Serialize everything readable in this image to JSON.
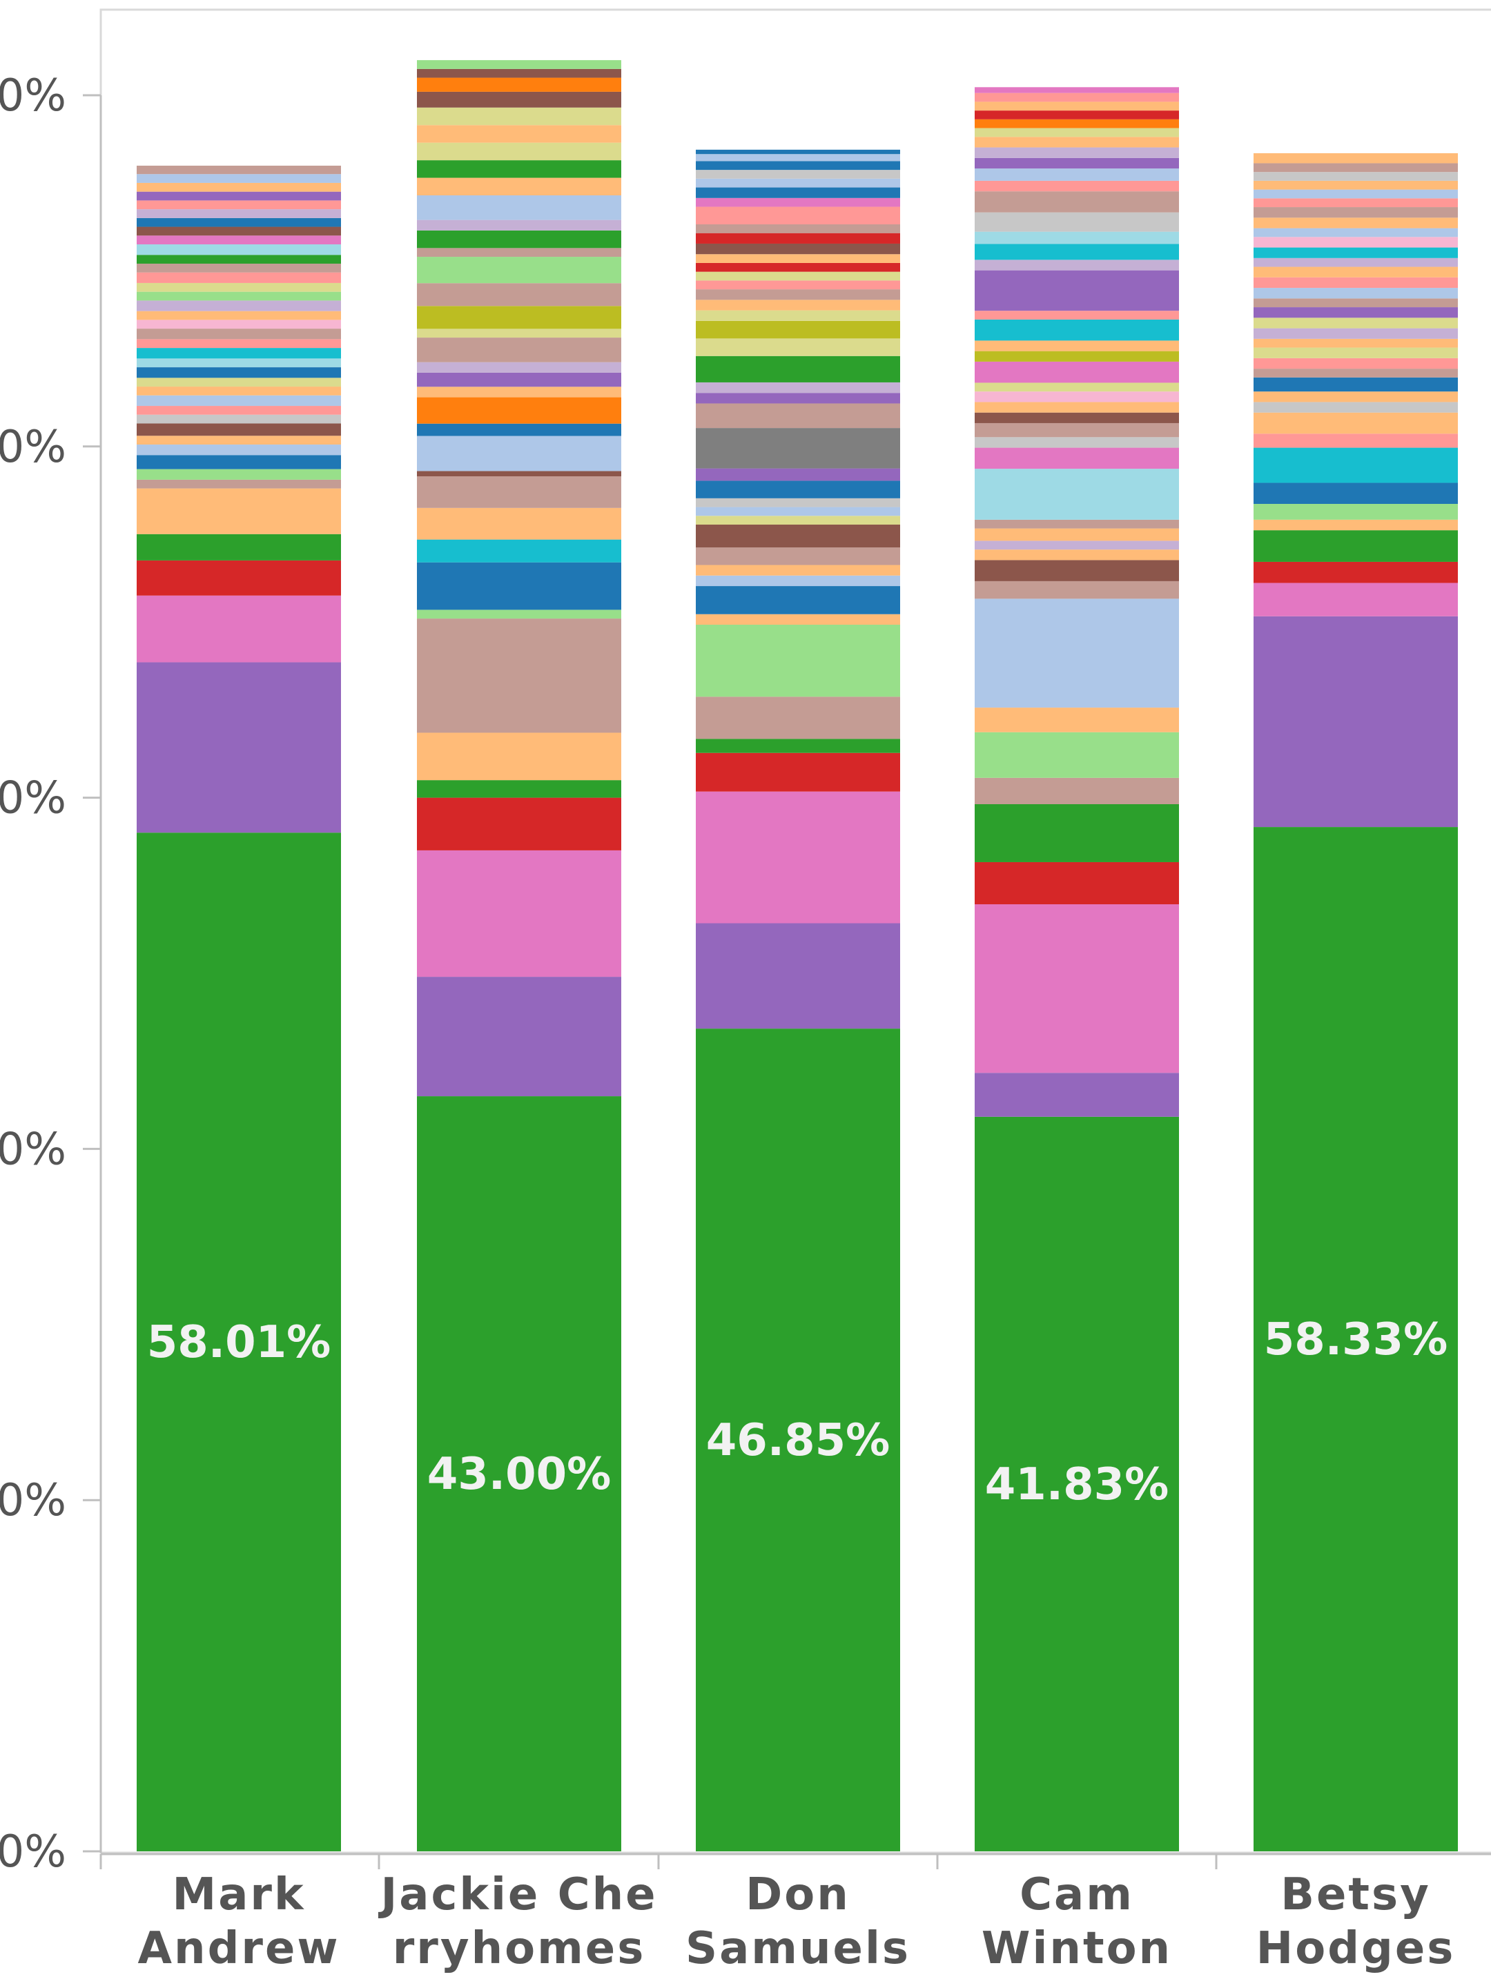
{
  "chart_data": {
    "type": "bar",
    "stacked": true,
    "title": "",
    "xlabel": "",
    "ylabel": "",
    "ylim": [
      0,
      100
    ],
    "y_tick_labels": [
      "0%",
      "0%",
      "0%",
      "0%",
      "0%",
      "0%"
    ],
    "grid": false,
    "categories": [
      "Mark\nAndrew",
      "Jackie Che\nrryhomes",
      "Don\nSamuels",
      "Cam\nWinton",
      "Betsy\nHodges"
    ],
    "data_labels": [
      "58.01%",
      "43.00%",
      "46.85%",
      "41.83%",
      "58.33%"
    ],
    "bars": [
      {
        "segments": [
          {
            "value": 58.01,
            "color": "#2ca02c"
          },
          {
            "value": 9.7,
            "color": "#9467bd"
          },
          {
            "value": 3.8,
            "color": "#e377c2"
          },
          {
            "value": 2.0,
            "color": "#d62728"
          },
          {
            "value": 1.5,
            "color": "#2ca02c"
          },
          {
            "value": 2.6,
            "color": "#ffbb78"
          },
          {
            "value": 0.5,
            "color": "#c49c94"
          },
          {
            "value": 0.6,
            "color": "#98df8a"
          },
          {
            "value": 0.8,
            "color": "#1f77b4"
          },
          {
            "value": 0.6,
            "color": "#aec7e8"
          },
          {
            "value": 0.5,
            "color": "#ffbb78"
          },
          {
            "value": 0.7,
            "color": "#8c564b"
          },
          {
            "value": 0.5,
            "color": "#c7c7c7"
          },
          {
            "value": 0.5,
            "color": "#ff9896"
          },
          {
            "value": 0.6,
            "color": "#aec7e8"
          },
          {
            "value": 0.5,
            "color": "#ffbb78"
          },
          {
            "value": 0.5,
            "color": "#dbdb8d"
          },
          {
            "value": 0.6,
            "color": "#1f77b4"
          },
          {
            "value": 0.5,
            "color": "#9edae5"
          },
          {
            "value": 0.6,
            "color": "#17becf"
          },
          {
            "value": 0.5,
            "color": "#ff9896"
          },
          {
            "value": 0.6,
            "color": "#c49c94"
          },
          {
            "value": 0.5,
            "color": "#f7b6d2"
          },
          {
            "value": 0.5,
            "color": "#ffbb78"
          },
          {
            "value": 0.6,
            "color": "#c5b0d5"
          },
          {
            "value": 0.5,
            "color": "#98df8a"
          },
          {
            "value": 0.5,
            "color": "#dbdb8d"
          },
          {
            "value": 0.6,
            "color": "#ff9896"
          },
          {
            "value": 0.5,
            "color": "#c49c94"
          },
          {
            "value": 0.5,
            "color": "#2ca02c"
          },
          {
            "value": 0.6,
            "color": "#9edae5"
          },
          {
            "value": 0.5,
            "color": "#e377c2"
          },
          {
            "value": 0.5,
            "color": "#8c564b"
          },
          {
            "value": 0.5,
            "color": "#1f77b4"
          },
          {
            "value": 0.5,
            "color": "#c5b0d5"
          },
          {
            "value": 0.5,
            "color": "#ff9896"
          },
          {
            "value": 0.5,
            "color": "#9467bd"
          },
          {
            "value": 0.5,
            "color": "#ffbb78"
          },
          {
            "value": 0.5,
            "color": "#aec7e8"
          },
          {
            "value": 0.48,
            "color": "#c49c94"
          }
        ]
      },
      {
        "segments": [
          {
            "value": 43.0,
            "color": "#2ca02c"
          },
          {
            "value": 6.8,
            "color": "#9467bd"
          },
          {
            "value": 7.2,
            "color": "#e377c2"
          },
          {
            "value": 3.0,
            "color": "#d62728"
          },
          {
            "value": 1.0,
            "color": "#2ca02c"
          },
          {
            "value": 2.7,
            "color": "#ffbb78"
          },
          {
            "value": 6.5,
            "color": "#c49c94"
          },
          {
            "value": 0.5,
            "color": "#98df8a"
          },
          {
            "value": 2.7,
            "color": "#1f77b4"
          },
          {
            "value": 1.3,
            "color": "#17becf"
          },
          {
            "value": 1.8,
            "color": "#ffbb78"
          },
          {
            "value": 1.8,
            "color": "#c49c94"
          },
          {
            "value": 0.3,
            "color": "#8c564b"
          },
          {
            "value": 2.0,
            "color": "#aec7e8"
          },
          {
            "value": 0.7,
            "color": "#1f77b4"
          },
          {
            "value": 1.5,
            "color": "#ff7f0e"
          },
          {
            "value": 0.6,
            "color": "#ffbb78"
          },
          {
            "value": 0.8,
            "color": "#9467bd"
          },
          {
            "value": 0.6,
            "color": "#c5b0d5"
          },
          {
            "value": 1.4,
            "color": "#c49c94"
          },
          {
            "value": 0.5,
            "color": "#dbdb8d"
          },
          {
            "value": 1.3,
            "color": "#bcbd22"
          },
          {
            "value": 1.3,
            "color": "#c49c94"
          },
          {
            "value": 1.5,
            "color": "#98df8a"
          },
          {
            "value": 0.5,
            "color": "#c49c94"
          },
          {
            "value": 1.0,
            "color": "#2ca02c"
          },
          {
            "value": 0.6,
            "color": "#c5b0d5"
          },
          {
            "value": 1.4,
            "color": "#aec7e8"
          },
          {
            "value": 1.0,
            "color": "#ffbb78"
          },
          {
            "value": 1.0,
            "color": "#2ca02c"
          },
          {
            "value": 1.0,
            "color": "#dbdb8d"
          },
          {
            "value": 1.0,
            "color": "#ffbb78"
          },
          {
            "value": 1.0,
            "color": "#dbdb8d"
          },
          {
            "value": 0.9,
            "color": "#8c564b"
          },
          {
            "value": 0.8,
            "color": "#ff7f0e"
          },
          {
            "value": 0.5,
            "color": "#8c564b"
          },
          {
            "value": 0.5,
            "color": "#98df8a"
          }
        ]
      },
      {
        "segments": [
          {
            "value": 46.85,
            "color": "#2ca02c"
          },
          {
            "value": 6.0,
            "color": "#9467bd"
          },
          {
            "value": 7.5,
            "color": "#e377c2"
          },
          {
            "value": 2.2,
            "color": "#d62728"
          },
          {
            "value": 0.8,
            "color": "#2ca02c"
          },
          {
            "value": 2.4,
            "color": "#c49c94"
          },
          {
            "value": 4.1,
            "color": "#98df8a"
          },
          {
            "value": 0.6,
            "color": "#ffbb78"
          },
          {
            "value": 1.6,
            "color": "#1f77b4"
          },
          {
            "value": 0.6,
            "color": "#aec7e8"
          },
          {
            "value": 0.6,
            "color": "#ffbb78"
          },
          {
            "value": 1.0,
            "color": "#c49c94"
          },
          {
            "value": 1.3,
            "color": "#8c564b"
          },
          {
            "value": 0.5,
            "color": "#dbdb8d"
          },
          {
            "value": 0.5,
            "color": "#aec7e8"
          },
          {
            "value": 0.5,
            "color": "#c7c7c7"
          },
          {
            "value": 1.0,
            "color": "#1f77b4"
          },
          {
            "value": 0.7,
            "color": "#9467bd"
          },
          {
            "value": 2.3,
            "color": "#7f7f7f"
          },
          {
            "value": 1.4,
            "color": "#c49c94"
          },
          {
            "value": 0.6,
            "color": "#9467bd"
          },
          {
            "value": 0.6,
            "color": "#c5b0d5"
          },
          {
            "value": 1.5,
            "color": "#2ca02c"
          },
          {
            "value": 1.0,
            "color": "#dbdb8d"
          },
          {
            "value": 1.0,
            "color": "#bcbd22"
          },
          {
            "value": 0.6,
            "color": "#dbdb8d"
          },
          {
            "value": 0.6,
            "color": "#ffbb78"
          },
          {
            "value": 0.6,
            "color": "#c49c94"
          },
          {
            "value": 0.5,
            "color": "#ff9896"
          },
          {
            "value": 0.5,
            "color": "#dbdb8d"
          },
          {
            "value": 0.5,
            "color": "#d62728"
          },
          {
            "value": 0.5,
            "color": "#ffbb78"
          },
          {
            "value": 0.6,
            "color": "#8c564b"
          },
          {
            "value": 0.6,
            "color": "#d62728"
          },
          {
            "value": 0.5,
            "color": "#c49c94"
          },
          {
            "value": 1.0,
            "color": "#ff9896"
          },
          {
            "value": 0.5,
            "color": "#e377c2"
          },
          {
            "value": 0.6,
            "color": "#1f77b4"
          },
          {
            "value": 0.5,
            "color": "#aec7e8"
          },
          {
            "value": 0.5,
            "color": "#c7c7c7"
          },
          {
            "value": 0.5,
            "color": "#1f77b4"
          },
          {
            "value": 0.4,
            "color": "#aec7e8"
          },
          {
            "value": 0.25,
            "color": "#1f77b4"
          }
        ]
      },
      {
        "segments": [
          {
            "value": 41.83,
            "color": "#2ca02c"
          },
          {
            "value": 2.5,
            "color": "#9467bd"
          },
          {
            "value": 9.6,
            "color": "#e377c2"
          },
          {
            "value": 2.4,
            "color": "#d62728"
          },
          {
            "value": 3.3,
            "color": "#2ca02c"
          },
          {
            "value": 1.5,
            "color": "#c49c94"
          },
          {
            "value": 2.6,
            "color": "#98df8a"
          },
          {
            "value": 1.4,
            "color": "#ffbb78"
          },
          {
            "value": 6.2,
            "color": "#aec7e8"
          },
          {
            "value": 1.0,
            "color": "#c49c94"
          },
          {
            "value": 1.2,
            "color": "#8c564b"
          },
          {
            "value": 0.6,
            "color": "#ffbb78"
          },
          {
            "value": 0.5,
            "color": "#c5b0d5"
          },
          {
            "value": 0.7,
            "color": "#ffbb78"
          },
          {
            "value": 0.5,
            "color": "#c49c94"
          },
          {
            "value": 2.9,
            "color": "#9edae5"
          },
          {
            "value": 1.2,
            "color": "#e377c2"
          },
          {
            "value": 0.6,
            "color": "#c7c7c7"
          },
          {
            "value": 0.8,
            "color": "#c49c94"
          },
          {
            "value": 0.6,
            "color": "#8c564b"
          },
          {
            "value": 0.6,
            "color": "#ffbb78"
          },
          {
            "value": 0.6,
            "color": "#f7b6d2"
          },
          {
            "value": 0.5,
            "color": "#dbdb8d"
          },
          {
            "value": 1.2,
            "color": "#e377c2"
          },
          {
            "value": 0.6,
            "color": "#bcbd22"
          },
          {
            "value": 0.6,
            "color": "#ffbb78"
          },
          {
            "value": 1.2,
            "color": "#17becf"
          },
          {
            "value": 0.5,
            "color": "#ff9896"
          },
          {
            "value": 2.3,
            "color": "#9467bd"
          },
          {
            "value": 0.6,
            "color": "#c5b0d5"
          },
          {
            "value": 0.9,
            "color": "#17becf"
          },
          {
            "value": 0.7,
            "color": "#9edae5"
          },
          {
            "value": 1.1,
            "color": "#c7c7c7"
          },
          {
            "value": 1.2,
            "color": "#c49c94"
          },
          {
            "value": 0.6,
            "color": "#ff9896"
          },
          {
            "value": 0.7,
            "color": "#aec7e8"
          },
          {
            "value": 0.6,
            "color": "#9467bd"
          },
          {
            "value": 0.6,
            "color": "#c5b0d5"
          },
          {
            "value": 0.6,
            "color": "#ffbb78"
          },
          {
            "value": 0.5,
            "color": "#dbdb8d"
          },
          {
            "value": 0.5,
            "color": "#ff7f0e"
          },
          {
            "value": 0.5,
            "color": "#d62728"
          },
          {
            "value": 0.5,
            "color": "#ffbb78"
          },
          {
            "value": 0.5,
            "color": "#ff9896"
          },
          {
            "value": 0.33,
            "color": "#e377c2"
          }
        ]
      },
      {
        "segments": [
          {
            "value": 58.33,
            "color": "#2ca02c"
          },
          {
            "value": 12.0,
            "color": "#9467bd"
          },
          {
            "value": 1.9,
            "color": "#e377c2"
          },
          {
            "value": 1.2,
            "color": "#d62728"
          },
          {
            "value": 1.8,
            "color": "#2ca02c"
          },
          {
            "value": 0.6,
            "color": "#ffbb78"
          },
          {
            "value": 0.9,
            "color": "#98df8a"
          },
          {
            "value": 1.2,
            "color": "#1f77b4"
          },
          {
            "value": 2.0,
            "color": "#17becf"
          },
          {
            "value": 0.8,
            "color": "#ff9896"
          },
          {
            "value": 1.2,
            "color": "#ffbb78"
          },
          {
            "value": 0.6,
            "color": "#c7c7c7"
          },
          {
            "value": 0.6,
            "color": "#ffbb78"
          },
          {
            "value": 0.8,
            "color": "#1f77b4"
          },
          {
            "value": 0.5,
            "color": "#c49c94"
          },
          {
            "value": 0.6,
            "color": "#ff9896"
          },
          {
            "value": 0.6,
            "color": "#dbdb8d"
          },
          {
            "value": 0.5,
            "color": "#ffbb78"
          },
          {
            "value": 0.6,
            "color": "#c5b0d5"
          },
          {
            "value": 0.6,
            "color": "#dbdb8d"
          },
          {
            "value": 0.6,
            "color": "#9467bd"
          },
          {
            "value": 0.5,
            "color": "#c49c94"
          },
          {
            "value": 0.6,
            "color": "#aec7e8"
          },
          {
            "value": 0.6,
            "color": "#ff9896"
          },
          {
            "value": 0.6,
            "color": "#ffbb78"
          },
          {
            "value": 0.5,
            "color": "#c5b0d5"
          },
          {
            "value": 0.6,
            "color": "#17becf"
          },
          {
            "value": 0.6,
            "color": "#f7b6d2"
          },
          {
            "value": 0.5,
            "color": "#aec7e8"
          },
          {
            "value": 0.6,
            "color": "#ffbb78"
          },
          {
            "value": 0.6,
            "color": "#c49c94"
          },
          {
            "value": 0.5,
            "color": "#ff9896"
          },
          {
            "value": 0.5,
            "color": "#aec7e8"
          },
          {
            "value": 0.5,
            "color": "#ffbb78"
          },
          {
            "value": 0.5,
            "color": "#c7c7c7"
          },
          {
            "value": 0.5,
            "color": "#c49c94"
          },
          {
            "value": 0.57,
            "color": "#ffbb78"
          }
        ]
      }
    ]
  }
}
